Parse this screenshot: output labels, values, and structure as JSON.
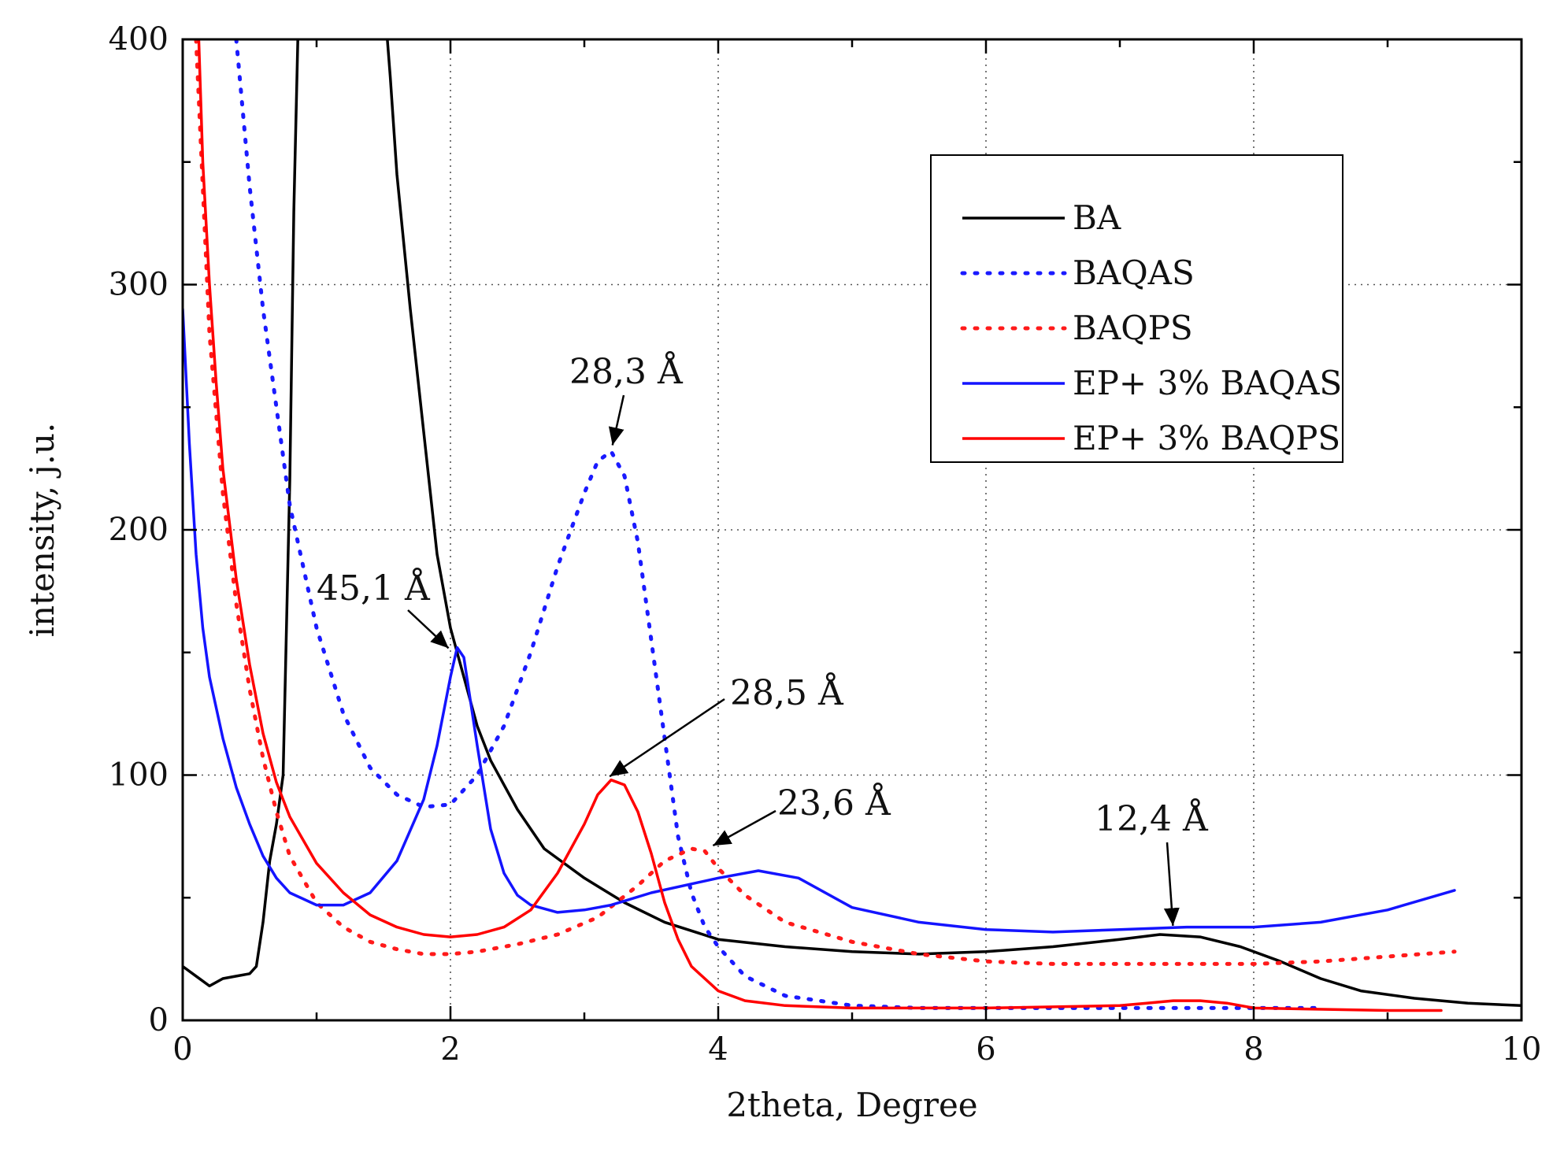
{
  "chart_data": {
    "type": "line",
    "title": "",
    "xlabel": "2theta, Degree",
    "ylabel": "intensity, j.u.",
    "xlim": [
      0,
      10
    ],
    "ylim": [
      0,
      400
    ],
    "xticks": [
      0,
      2,
      4,
      6,
      8,
      10
    ],
    "yticks": [
      0,
      100,
      200,
      300,
      400
    ],
    "xtick_labels": [
      "0",
      "2",
      "4",
      "6",
      "8",
      "10"
    ],
    "ytick_labels": [
      "0",
      "100",
      "200",
      "300",
      "400"
    ],
    "grid": true,
    "legend_position": "top-right",
    "series": [
      {
        "name": "BA",
        "color": "#000000",
        "style": "solid",
        "x": [
          0,
          0.1,
          0.2,
          0.3,
          0.4,
          0.5,
          0.55,
          0.6,
          0.65,
          0.7,
          0.75,
          0.8,
          0.83,
          0.86,
          0.88,
          1.5,
          1.55,
          1.6,
          1.7,
          1.8,
          1.9,
          2.0,
          2.1,
          2.2,
          2.3,
          2.5,
          2.7,
          3.0,
          3.3,
          3.6,
          4.0,
          4.5,
          5.0,
          5.5,
          6.0,
          6.5,
          7.0,
          7.3,
          7.6,
          7.9,
          8.2,
          8.5,
          8.8,
          9.2,
          9.6,
          10.0
        ],
        "values": [
          22,
          18,
          14,
          17,
          18,
          19,
          22,
          40,
          65,
          80,
          100,
          220,
          330,
          400,
          420,
          420,
          385,
          345,
          290,
          240,
          190,
          160,
          140,
          120,
          106,
          86,
          70,
          58,
          48,
          40,
          33,
          30,
          28,
          27,
          28,
          30,
          33,
          35,
          34,
          30,
          24,
          17,
          12,
          9,
          7,
          6
        ]
      },
      {
        "name": "BAQAS",
        "color": "#1a1aff",
        "style": "dotted",
        "x": [
          0.4,
          0.5,
          0.6,
          0.7,
          0.8,
          0.9,
          1.0,
          1.2,
          1.4,
          1.6,
          1.8,
          2.0,
          2.2,
          2.4,
          2.6,
          2.8,
          3.0,
          3.1,
          3.2,
          3.3,
          3.4,
          3.5,
          3.6,
          3.7,
          3.8,
          3.9,
          4.0,
          4.2,
          4.5,
          5.0,
          5.5,
          6.0,
          7.0,
          8.0,
          8.5
        ],
        "values": [
          400,
          340,
          290,
          250,
          210,
          185,
          160,
          125,
          103,
          92,
          87,
          88,
          100,
          120,
          150,
          185,
          215,
          228,
          232,
          222,
          195,
          155,
          115,
          75,
          52,
          38,
          30,
          18,
          10,
          6,
          5,
          5,
          5,
          5,
          5
        ]
      },
      {
        "name": "BAQPS",
        "color": "#ff1a1a",
        "style": "dotted",
        "x": [
          0.1,
          0.2,
          0.3,
          0.4,
          0.5,
          0.6,
          0.7,
          0.8,
          1.0,
          1.2,
          1.4,
          1.6,
          1.8,
          2.0,
          2.2,
          2.5,
          2.8,
          3.1,
          3.4,
          3.6,
          3.8,
          3.9,
          4.0,
          4.2,
          4.5,
          5.0,
          5.5,
          6.0,
          6.5,
          7.0,
          7.5,
          8.0,
          8.5,
          9.0,
          9.5
        ],
        "values": [
          400,
          280,
          215,
          170,
          135,
          107,
          85,
          67,
          48,
          38,
          32,
          29,
          27,
          27,
          28,
          31,
          35,
          42,
          55,
          65,
          70,
          69,
          62,
          51,
          40,
          32,
          27,
          24,
          23,
          23,
          23,
          23,
          24,
          26,
          28
        ]
      },
      {
        "name": "EP+ 3% BAQAS",
        "color": "#1414ff",
        "style": "solid",
        "x": [
          0,
          0.05,
          0.1,
          0.15,
          0.2,
          0.3,
          0.4,
          0.5,
          0.6,
          0.7,
          0.8,
          1.0,
          1.2,
          1.4,
          1.6,
          1.8,
          1.9,
          2.0,
          2.05,
          2.1,
          2.2,
          2.3,
          2.4,
          2.5,
          2.6,
          2.8,
          3.0,
          3.2,
          3.5,
          4.0,
          4.3,
          4.6,
          5.0,
          5.5,
          6.0,
          6.5,
          7.0,
          7.5,
          8.0,
          8.5,
          9.0,
          9.5
        ],
        "values": [
          290,
          235,
          190,
          160,
          140,
          115,
          95,
          80,
          67,
          58,
          52,
          47,
          47,
          52,
          65,
          90,
          112,
          140,
          152,
          148,
          112,
          78,
          60,
          51,
          47,
          44,
          45,
          47,
          52,
          58,
          61,
          58,
          46,
          40,
          37,
          36,
          37,
          38,
          38,
          40,
          45,
          53
        ]
      },
      {
        "name": "EP+ 3% BAQPS",
        "color": "#ff0000",
        "style": "solid",
        "x": [
          0.12,
          0.15,
          0.2,
          0.25,
          0.3,
          0.4,
          0.5,
          0.6,
          0.7,
          0.8,
          1.0,
          1.2,
          1.4,
          1.6,
          1.8,
          2.0,
          2.2,
          2.4,
          2.6,
          2.8,
          3.0,
          3.1,
          3.2,
          3.3,
          3.4,
          3.5,
          3.6,
          3.7,
          3.8,
          4.0,
          4.2,
          4.5,
          5.0,
          6.0,
          7.0,
          7.2,
          7.4,
          7.6,
          7.8,
          8.0,
          9.0,
          9.4
        ],
        "values": [
          400,
          350,
          300,
          260,
          225,
          180,
          145,
          117,
          97,
          83,
          64,
          52,
          43,
          38,
          35,
          34,
          35,
          38,
          45,
          60,
          80,
          92,
          98,
          96,
          85,
          68,
          48,
          33,
          22,
          12,
          8,
          6,
          5,
          5,
          6,
          7,
          8,
          8,
          7,
          5,
          4,
          4
        ]
      }
    ],
    "annotations": [
      {
        "text": "28,3 Å",
        "target_x": 3.2,
        "target_y": 232
      },
      {
        "text": "45,1 Å",
        "target_x": 2.02,
        "target_y": 150
      },
      {
        "text": "28,5 Å",
        "target_x": 3.15,
        "target_y": 98
      },
      {
        "text": "23,6 Å",
        "target_x": 3.92,
        "target_y": 70
      },
      {
        "text": "12,4 Å",
        "target_x": 7.4,
        "target_y": 36
      }
    ]
  }
}
